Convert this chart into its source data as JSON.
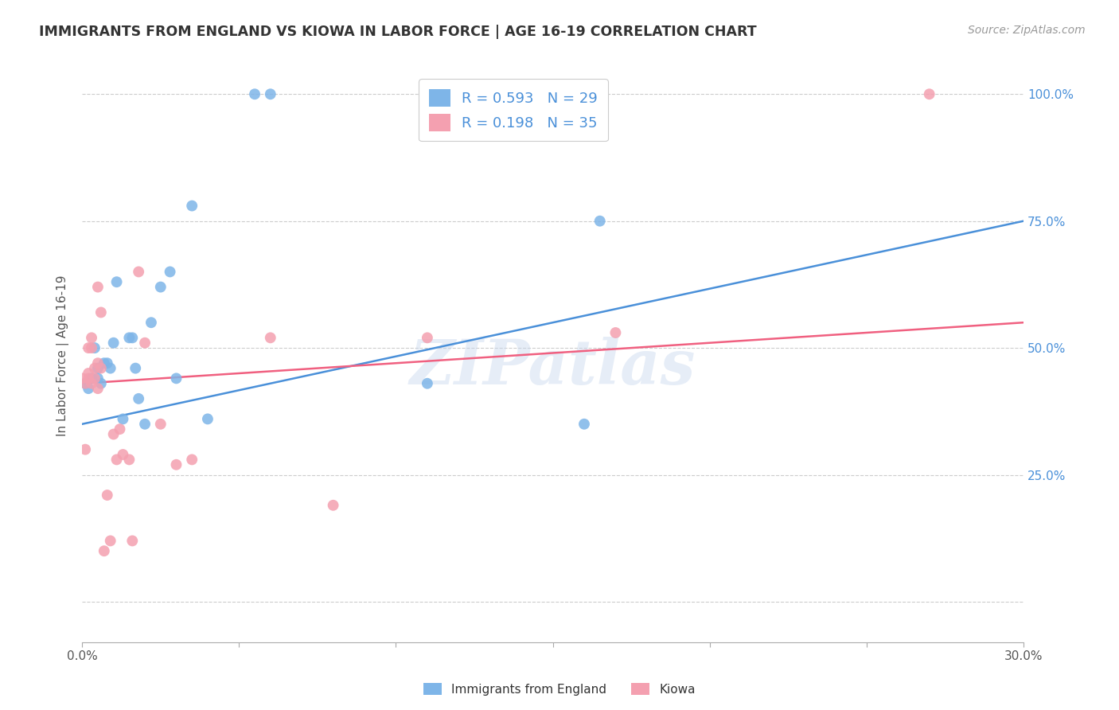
{
  "title": "IMMIGRANTS FROM ENGLAND VS KIOWA IN LABOR FORCE | AGE 16-19 CORRELATION CHART",
  "source": "Source: ZipAtlas.com",
  "ylabel": "In Labor Force | Age 16-19",
  "x_min": 0.0,
  "x_max": 0.3,
  "y_min": -0.08,
  "y_max": 1.05,
  "x_ticks": [
    0.0,
    0.05,
    0.1,
    0.15,
    0.2,
    0.25,
    0.3
  ],
  "y_ticks": [
    0.0,
    0.25,
    0.5,
    0.75,
    1.0
  ],
  "y_tick_labels_right": [
    "",
    "25.0%",
    "50.0%",
    "75.0%",
    "100.0%"
  ],
  "england_color": "#7eb5e8",
  "kiowa_color": "#f4a0b0",
  "england_line_color": "#4a90d9",
  "kiowa_line_color": "#f06080",
  "legend_text_color": "#4a90d9",
  "R_england": 0.593,
  "N_england": 29,
  "R_kiowa": 0.198,
  "N_kiowa": 35,
  "watermark": "ZIPatlas",
  "england_scatter_x": [
    0.001,
    0.002,
    0.003,
    0.004,
    0.005,
    0.005,
    0.006,
    0.007,
    0.008,
    0.009,
    0.01,
    0.011,
    0.013,
    0.015,
    0.016,
    0.017,
    0.018,
    0.02,
    0.022,
    0.025,
    0.028,
    0.03,
    0.035,
    0.04,
    0.055,
    0.06,
    0.11,
    0.16,
    0.165
  ],
  "england_scatter_y": [
    0.43,
    0.42,
    0.44,
    0.5,
    0.46,
    0.44,
    0.43,
    0.47,
    0.47,
    0.46,
    0.51,
    0.63,
    0.36,
    0.52,
    0.52,
    0.46,
    0.4,
    0.35,
    0.55,
    0.62,
    0.65,
    0.44,
    0.78,
    0.36,
    1.0,
    1.0,
    0.43,
    0.35,
    0.75
  ],
  "kiowa_scatter_x": [
    0.0,
    0.001,
    0.001,
    0.002,
    0.002,
    0.002,
    0.003,
    0.003,
    0.003,
    0.004,
    0.004,
    0.005,
    0.005,
    0.005,
    0.006,
    0.006,
    0.007,
    0.008,
    0.009,
    0.01,
    0.011,
    0.012,
    0.013,
    0.015,
    0.016,
    0.018,
    0.02,
    0.025,
    0.03,
    0.035,
    0.06,
    0.08,
    0.11,
    0.17,
    0.27
  ],
  "kiowa_scatter_y": [
    0.44,
    0.43,
    0.3,
    0.45,
    0.44,
    0.5,
    0.43,
    0.5,
    0.52,
    0.44,
    0.46,
    0.47,
    0.42,
    0.62,
    0.57,
    0.46,
    0.1,
    0.21,
    0.12,
    0.33,
    0.28,
    0.34,
    0.29,
    0.28,
    0.12,
    0.65,
    0.51,
    0.35,
    0.27,
    0.28,
    0.52,
    0.19,
    0.52,
    0.53,
    1.0
  ],
  "england_trend_x0": 0.0,
  "england_trend_x1": 0.3,
  "england_trend_y0": 0.35,
  "england_trend_y1": 0.75,
  "kiowa_trend_x0": 0.0,
  "kiowa_trend_x1": 0.3,
  "kiowa_trend_y0": 0.43,
  "kiowa_trend_y1": 0.55
}
